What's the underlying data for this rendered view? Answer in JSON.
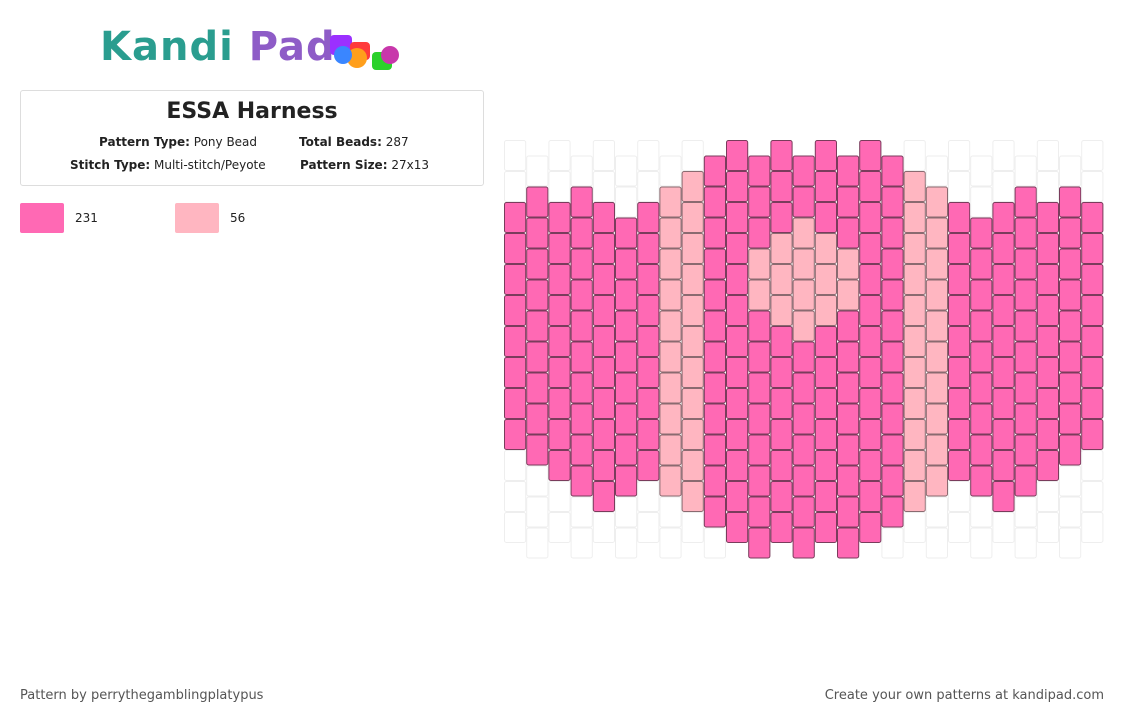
{
  "logo": {
    "text": "Kandi Pad"
  },
  "header": {
    "title": "ESSA Harness",
    "fields": [
      {
        "label": "Pattern Type:",
        "value": "Pony Bead"
      },
      {
        "label": "Total Beads:",
        "value": "287"
      },
      {
        "label": "Stitch Type:",
        "value": "Multi-stitch/Peyote"
      },
      {
        "label": "Pattern Size:",
        "value": "27x13"
      }
    ]
  },
  "palette": [
    {
      "color": "#ff69b4",
      "count": "231"
    },
    {
      "color": "#ffb6c1",
      "count": "56"
    }
  ],
  "footer": {
    "left": "Pattern by perrythegamblingplatypus",
    "right": "Create your own patterns at kandipad.com"
  }
}
